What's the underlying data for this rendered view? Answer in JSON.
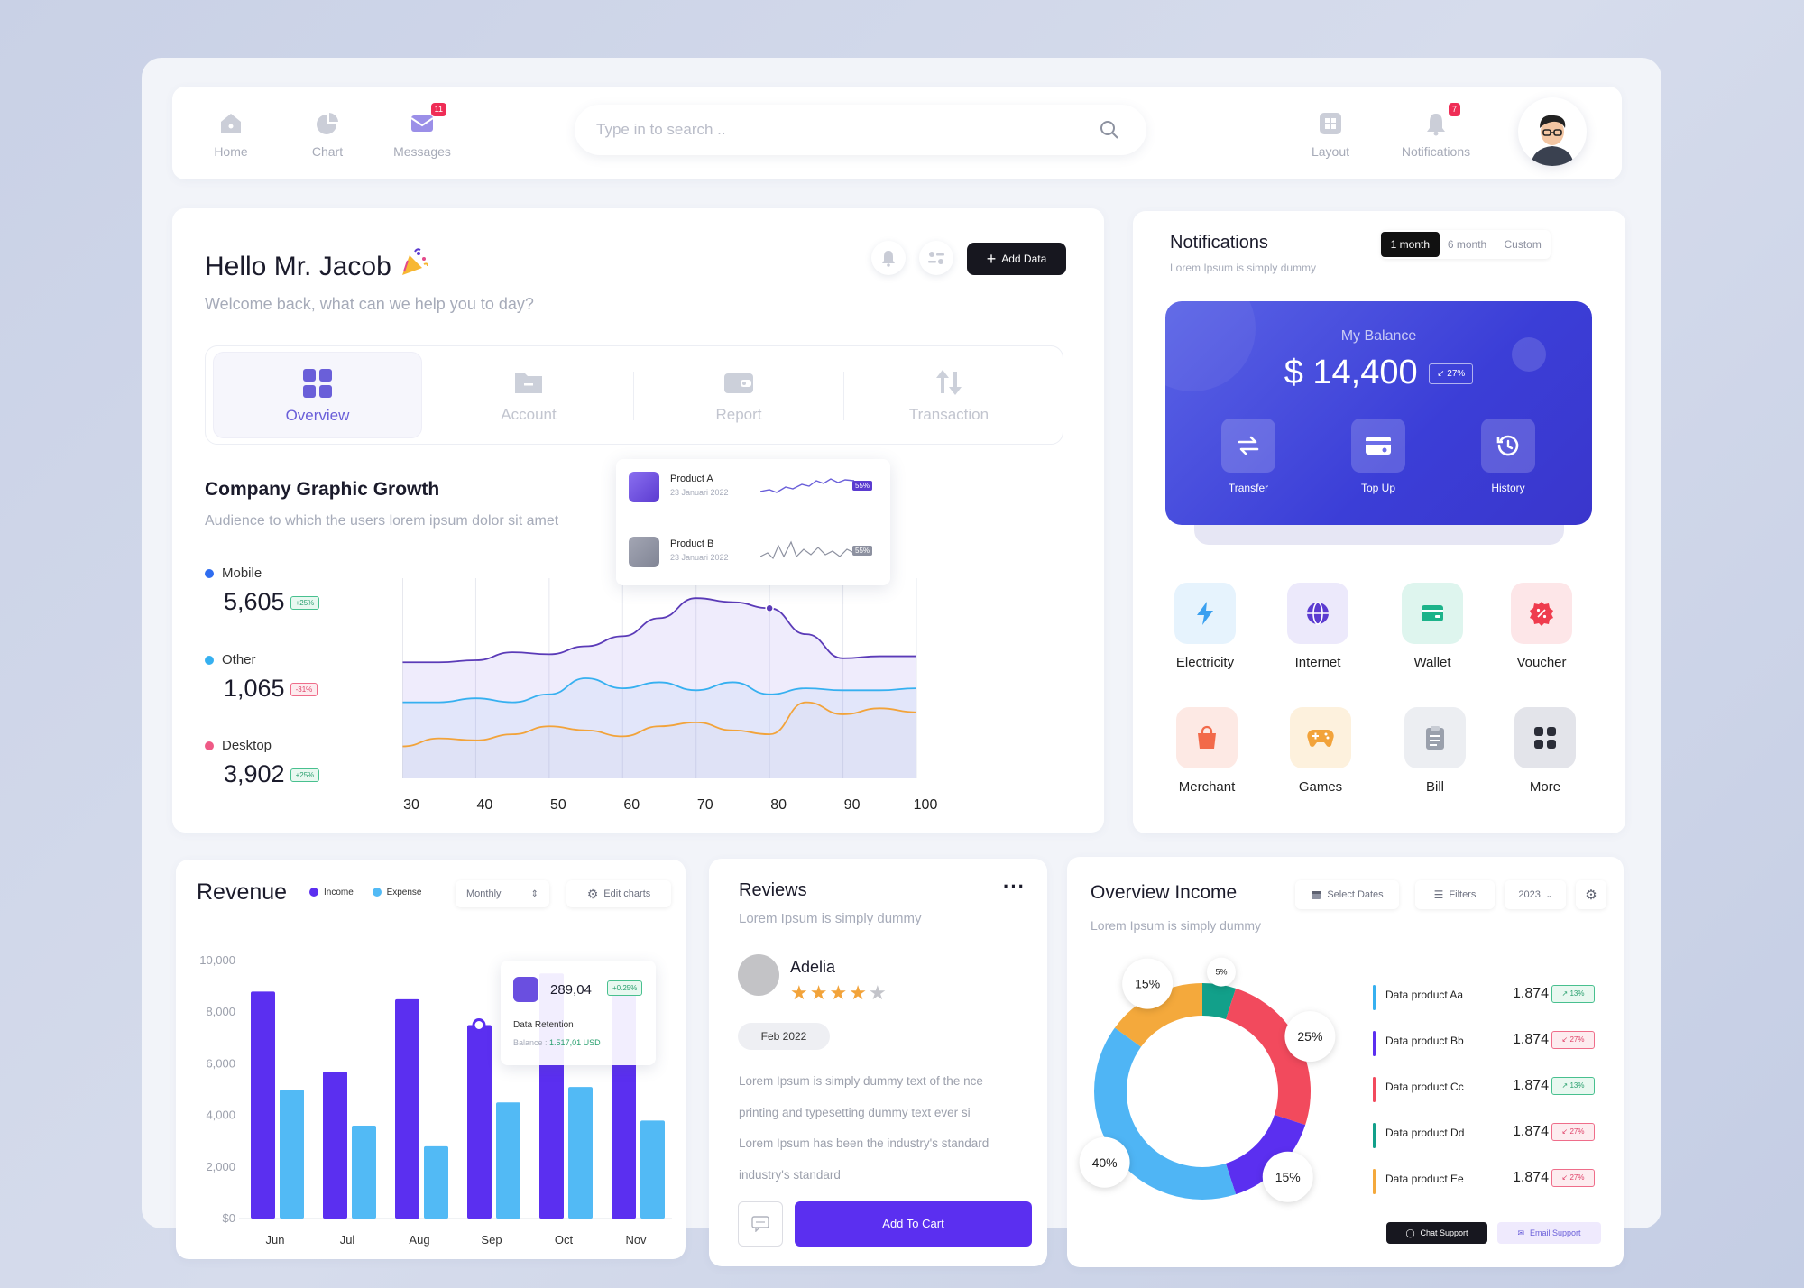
{
  "nav": {
    "items": [
      {
        "label": "Home",
        "icon": "home-icon"
      },
      {
        "label": "Chart",
        "icon": "pie-chart-icon"
      },
      {
        "label": "Messages",
        "icon": "message-icon",
        "badge": "11"
      }
    ],
    "right_items": [
      {
        "label": "Layout",
        "icon": "grid-icon"
      },
      {
        "label": "Notifications",
        "icon": "bell-icon",
        "badge": "7"
      }
    ],
    "search_placeholder": "Type in to search .."
  },
  "hero": {
    "greeting": "Hello Mr. Jacob",
    "subtitle": "Welcome back, what can we help you to day?",
    "add_button": "Add Data",
    "tabs": [
      {
        "label": "Overview",
        "icon": "grid-icon",
        "active": true
      },
      {
        "label": "Account",
        "icon": "folder-icon"
      },
      {
        "label": "Report",
        "icon": "wallet-icon"
      },
      {
        "label": "Transaction",
        "icon": "sort-icon"
      }
    ]
  },
  "growth": {
    "title": "Company Graphic Growth",
    "subtitle": "Audience to which the users lorem ipsum dolor sit amet",
    "stats": [
      {
        "name": "Mobile",
        "value": "5,605",
        "change": "+25%",
        "color": "#2f6df0",
        "trend": "up"
      },
      {
        "name": "Other",
        "value": "1,065",
        "change": "-31%",
        "color": "#36b0f0",
        "trend": "down"
      },
      {
        "name": "Desktop",
        "value": "3,902",
        "change": "+25%",
        "color": "#ef5a86",
        "trend": "up"
      }
    ],
    "tooltip": [
      {
        "name": "Product A",
        "date": "23 Januari 2022",
        "pct": "55%"
      },
      {
        "name": "Product B",
        "date": "23 Januari 2022",
        "pct": "55%"
      }
    ]
  },
  "chart_data": [
    {
      "type": "line",
      "x": [
        30,
        35,
        40,
        45,
        50,
        55,
        60,
        65,
        70,
        75,
        80,
        85,
        90,
        95,
        100
      ],
      "xticks": [
        30,
        40,
        50,
        60,
        70,
        80,
        90,
        100
      ],
      "xlim": [
        30,
        100
      ],
      "series": [
        {
          "name": "Mobile",
          "color": "#5b3bb8",
          "values": [
            58,
            58,
            59,
            63,
            62,
            66,
            71,
            80,
            90,
            88,
            85,
            72,
            60,
            61,
            61
          ]
        },
        {
          "name": "Other",
          "color": "#36b0f0",
          "values": [
            38,
            38,
            40,
            38,
            42,
            50,
            45,
            48,
            44,
            48,
            42,
            45,
            44,
            44,
            45
          ]
        },
        {
          "name": "Desktop",
          "color": "#f2a33a",
          "values": [
            16,
            20,
            19,
            22,
            26,
            24,
            21,
            26,
            28,
            24,
            22,
            38,
            32,
            35,
            33
          ]
        }
      ],
      "ylim": [
        0,
        100
      ],
      "grid": true
    },
    {
      "type": "bar",
      "title": "Revenue",
      "categories": [
        "Jun",
        "Jul",
        "Aug",
        "Sep",
        "Oct",
        "Nov"
      ],
      "series": [
        {
          "name": "Income",
          "color": "#5b2ff0",
          "values": [
            8800,
            5700,
            8500,
            7500,
            9500,
            8900
          ]
        },
        {
          "name": "Expense",
          "color": "#52baf5",
          "values": [
            5000,
            3600,
            2800,
            4500,
            5100,
            3800
          ]
        }
      ],
      "yticks": [
        "$0",
        "2,000",
        "4,000",
        "6,000",
        "8,000",
        "10,000"
      ],
      "ylim": [
        0,
        10000
      ],
      "legend": "top"
    },
    {
      "type": "pie",
      "title": "Overview Income",
      "slices": [
        {
          "label": "5%",
          "value": 5,
          "color": "#12a08a"
        },
        {
          "label": "25%",
          "value": 25,
          "color": "#f24a5d"
        },
        {
          "label": "15%",
          "value": 15,
          "color": "#5b2ff0"
        },
        {
          "label": "40%",
          "value": 40,
          "color": "#4fb5f5"
        },
        {
          "label": "15%",
          "value": 15,
          "color": "#f4a93c"
        }
      ]
    }
  ],
  "revenue": {
    "title": "Revenue",
    "legend": [
      {
        "name": "Income",
        "color": "#5b2ff0"
      },
      {
        "name": "Expense",
        "color": "#52baf5"
      }
    ],
    "period": "Monthly",
    "edit": "Edit charts",
    "tooltip": {
      "value": "289,04",
      "change": "+0.25%",
      "label": "Data Retention",
      "balance_label": "Balance :",
      "balance_value": "1.517,01 USD"
    }
  },
  "notifications": {
    "title": "Notifications",
    "subtitle": "Lorem Ipsum is simply dummy",
    "ranges": [
      "1 month",
      "6 month",
      "Custom"
    ],
    "balance": {
      "label": "My Balance",
      "value": "$ 14,400",
      "change": "27%"
    },
    "actions": [
      {
        "label": "Transfer",
        "icon": "transfer-icon"
      },
      {
        "label": "Top Up",
        "icon": "card-icon"
      },
      {
        "label": "History",
        "icon": "history-icon"
      }
    ],
    "services": [
      {
        "label": "Electricity",
        "icon": "bolt-icon",
        "bg": "#e6f3fd",
        "fg": "#3aa0f0"
      },
      {
        "label": "Internet",
        "icon": "globe-icon",
        "bg": "#ece9fb",
        "fg": "#5b3bd0"
      },
      {
        "label": "Wallet",
        "icon": "wallet-icon",
        "bg": "#def5ee",
        "fg": "#1db38a"
      },
      {
        "label": "Voucher",
        "icon": "voucher-icon",
        "bg": "#fde6e8",
        "fg": "#ef3c4e"
      },
      {
        "label": "Merchant",
        "icon": "bag-icon",
        "bg": "#fde9e4",
        "fg": "#f26a4a"
      },
      {
        "label": "Games",
        "icon": "gamepad-icon",
        "bg": "#fdf1dd",
        "fg": "#f2a33a"
      },
      {
        "label": "Bill",
        "icon": "clipboard-icon",
        "bg": "#eceef2",
        "fg": "#9aa0ac"
      },
      {
        "label": "More",
        "icon": "grid-icon",
        "bg": "#e3e4ea",
        "fg": "#2b2d38"
      }
    ]
  },
  "reviews": {
    "title": "Reviews",
    "subtitle": "Lorem Ipsum is simply dummy",
    "name": "Adelia",
    "rating": 4,
    "date": "Feb 2022",
    "lines": [
      "Lorem Ipsum is simply dummy text of the nce",
      "printing and typesetting  dummy text ever si",
      "Lorem Ipsum has been the industry's standard",
      "industry's standard"
    ],
    "cart": "Add To Cart"
  },
  "income": {
    "title": "Overview Income",
    "subtitle": "Lorem Ipsum is simply dummy",
    "select_dates": "Select Dates",
    "filters": "Filters",
    "year": "2023",
    "products": [
      {
        "name": "Data product Aa",
        "value": "1.874",
        "change": "13%",
        "color": "#36b0f0",
        "trend": "up"
      },
      {
        "name": "Data product Bb",
        "value": "1.874",
        "change": "27%",
        "color": "#5b2ff0",
        "trend": "down"
      },
      {
        "name": "Data product Cc",
        "value": "1.874",
        "change": "13%",
        "color": "#f24a5d",
        "trend": "up"
      },
      {
        "name": "Data product Dd",
        "value": "1.874",
        "change": "27%",
        "color": "#12a08a",
        "trend": "down"
      },
      {
        "name": "Data product Ee",
        "value": "1.874",
        "change": "27%",
        "color": "#f4a93c",
        "trend": "down"
      }
    ],
    "chat": "Chat Support",
    "email": "Email Support"
  }
}
